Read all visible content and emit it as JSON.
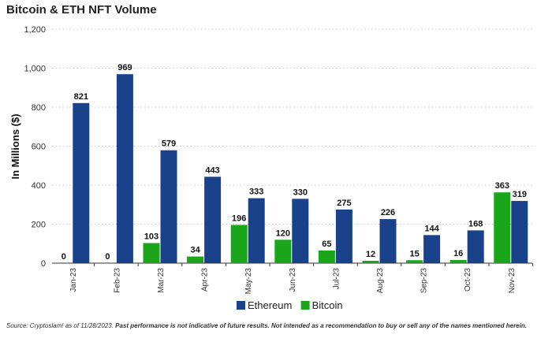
{
  "title": "Bitcoin & ETH NFT Volume",
  "source_note": {
    "prefix": "Source: Cryptoslam! as of 11/28/2023. ",
    "emphasis": "Past performance is not indicative of future results. Not intended as a recommendation to buy or sell any of the names mentioned herein."
  },
  "colors": {
    "ethereum": "#1a428a",
    "bitcoin": "#1aa51a",
    "grid": "#c8c8c8",
    "axis": "#333333"
  },
  "chart_data": {
    "type": "bar",
    "title": "Bitcoin & ETH NFT Volume",
    "xlabel": "",
    "ylabel": "In Millions ($)",
    "ylim": [
      0,
      1200
    ],
    "yticks": [
      "0",
      "200",
      "400",
      "600",
      "800",
      "1,000",
      "1,200"
    ],
    "ytick_values": [
      0,
      200,
      400,
      600,
      800,
      1000,
      1200
    ],
    "grid": true,
    "legend_position": "bottom-center",
    "categories": [
      "Jan-23",
      "Feb-23",
      "Mar-23",
      "Apr-23",
      "May-23",
      "Jun-23",
      "Jul-23",
      "Aug-23",
      "Sep-23",
      "Oct-23",
      "Nov-23"
    ],
    "series": [
      {
        "name": "Bitcoin",
        "key": "bitcoin",
        "values": [
          0,
          0,
          103,
          34,
          196,
          120,
          65,
          12,
          15,
          16,
          363
        ]
      },
      {
        "name": "Ethereum",
        "key": "ethereum",
        "values": [
          821,
          969,
          579,
          443,
          333,
          330,
          275,
          226,
          144,
          168,
          319
        ]
      }
    ],
    "legend_order": [
      "Ethereum",
      "Bitcoin"
    ]
  }
}
